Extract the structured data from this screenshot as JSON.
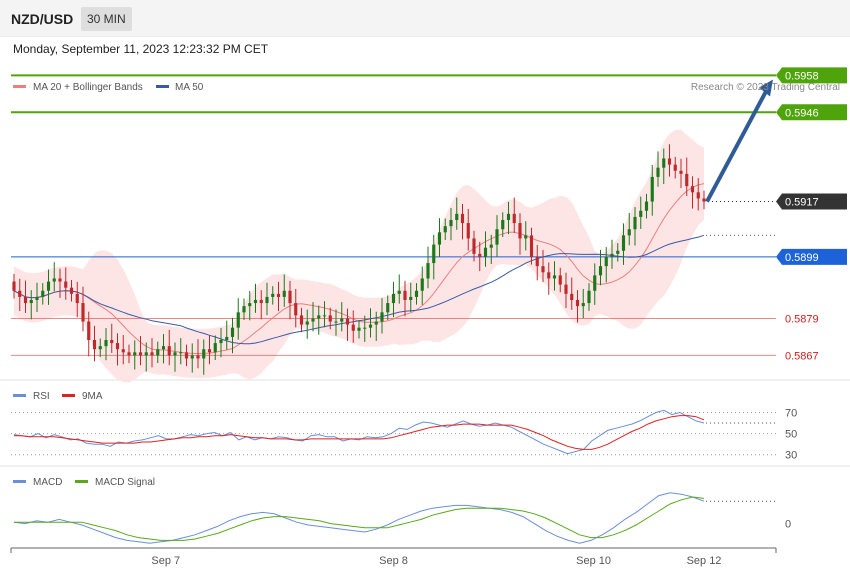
{
  "header": {
    "pair": "NZD/USD",
    "timeframe": "30 MIN",
    "datetime": "Monday, September 11, 2023 12:23:32 PM CET"
  },
  "copyright": "Research © 2023 Trading Central",
  "colors": {
    "candle_up": "#1a7a1a",
    "candle_down": "#c0292b",
    "ma20": "#f07e7e",
    "bollinger_fill": "#fde0e0",
    "ma50": "#3a5aa8",
    "resistance": "#4fa40c",
    "support": "#e05858",
    "pivot": "#1d62d8",
    "last_price": "#333333",
    "rsi": "#6a8fd8",
    "rsi_ma": "#dd2222",
    "macd": "#6a8fd8",
    "macd_signal": "#59a81a",
    "arrow": "#2f5b96"
  },
  "chart_data": [
    {
      "type": "candlestick",
      "title": "NZD/USD",
      "legend": [
        {
          "name": "MA 20 + Bollinger Bands",
          "color": "#f07e7e"
        },
        {
          "name": "MA 50",
          "color": "#3a5aa8"
        }
      ],
      "legend_position": "top-left",
      "ylim": [
        0.5859,
        0.5963
      ],
      "x_ticks": [
        "Sep 7",
        "Sep 8",
        "Sep 10",
        "Sep 12"
      ],
      "levels": [
        {
          "value": 0.5958,
          "label": "0.5958",
          "kind": "resistance"
        },
        {
          "value": 0.5946,
          "label": "0.5946",
          "kind": "resistance"
        },
        {
          "value": 0.5917,
          "label": "0.5917",
          "kind": "last"
        },
        {
          "value": 0.5899,
          "label": "0.5899",
          "kind": "pivot"
        },
        {
          "value": 0.5879,
          "label": "0.5879",
          "kind": "support"
        },
        {
          "value": 0.5867,
          "label": "0.5867",
          "kind": "support"
        }
      ],
      "ma50_last": 0.5906,
      "close_series": [
        0.5888,
        0.5886,
        0.5884,
        0.5885,
        0.5886,
        0.5888,
        0.5891,
        0.5892,
        0.5891,
        0.5889,
        0.5887,
        0.5884,
        0.5878,
        0.5872,
        0.5869,
        0.587,
        0.5872,
        0.5871,
        0.5869,
        0.5868,
        0.5867,
        0.5868,
        0.5867,
        0.5868,
        0.5867,
        0.5869,
        0.587,
        0.5867,
        0.5868,
        0.5868,
        0.5866,
        0.5867,
        0.5866,
        0.5869,
        0.5868,
        0.5871,
        0.5872,
        0.5873,
        0.5876,
        0.5881,
        0.5883,
        0.5884,
        0.5885,
        0.5884,
        0.5886,
        0.5887,
        0.5886,
        0.5888,
        0.5884,
        0.588,
        0.5877,
        0.5878,
        0.5879,
        0.588,
        0.588,
        0.5878,
        0.5878,
        0.5879,
        0.5877,
        0.5875,
        0.5876,
        0.5876,
        0.5877,
        0.5878,
        0.5881,
        0.5884,
        0.5887,
        0.5888,
        0.5885,
        0.5886,
        0.5888,
        0.5892,
        0.5897,
        0.5903,
        0.5907,
        0.5909,
        0.5911,
        0.5913,
        0.591,
        0.5905,
        0.59,
        0.5899,
        0.5902,
        0.5903,
        0.5908,
        0.5911,
        0.5913,
        0.591,
        0.5905,
        0.5906,
        0.5899,
        0.5896,
        0.5894,
        0.5892,
        0.5893,
        0.589,
        0.5887,
        0.5885,
        0.5883,
        0.5884,
        0.5888,
        0.5893,
        0.5896,
        0.5899,
        0.59,
        0.5901,
        0.5906,
        0.5908,
        0.5912,
        0.5914,
        0.5917,
        0.5925,
        0.5928,
        0.5931,
        0.5929,
        0.5927,
        0.5926,
        0.5922,
        0.592,
        0.5918,
        0.5917
      ]
    },
    {
      "type": "line",
      "title": "RSI",
      "series": [
        {
          "name": "RSI",
          "color": "#6a8fd8",
          "values": [
            49,
            48,
            47,
            50,
            46,
            49,
            47,
            44,
            45,
            41,
            40,
            40,
            38,
            42,
            41,
            43,
            44,
            46,
            48,
            45,
            45,
            47,
            49,
            48,
            50,
            51,
            48,
            51,
            44,
            47,
            44,
            46,
            45,
            47,
            46,
            44,
            43,
            48,
            49,
            47,
            47,
            43,
            45,
            44,
            47,
            46,
            47,
            50,
            55,
            54,
            58,
            61,
            60,
            58,
            56,
            59,
            62,
            59,
            57,
            58,
            60,
            58,
            56,
            52,
            48,
            44,
            40,
            37,
            34,
            31,
            33,
            35,
            43,
            48,
            53,
            55,
            57,
            59,
            62,
            66,
            70,
            72,
            68,
            70,
            66,
            62,
            60
          ]
        },
        {
          "name": "9MA",
          "color": "#dd2222",
          "values": [
            48,
            48,
            47,
            47,
            47,
            47,
            46,
            45,
            44,
            43,
            42,
            41,
            41,
            41,
            41,
            41,
            42,
            42,
            43,
            44,
            45,
            46,
            46,
            47,
            47,
            48,
            48,
            49,
            48,
            47,
            46,
            46,
            45,
            45,
            45,
            44,
            44,
            45,
            45,
            45,
            45,
            45,
            45,
            45,
            45,
            45,
            45,
            46,
            48,
            50,
            52,
            54,
            56,
            57,
            58,
            58,
            59,
            59,
            59,
            58,
            58,
            58,
            58,
            56,
            54,
            51,
            48,
            44,
            41,
            38,
            36,
            35,
            35,
            37,
            40,
            44,
            48,
            52,
            55,
            59,
            62,
            64,
            66,
            67,
            67,
            66,
            63
          ]
        }
      ],
      "ticks": [
        "70",
        "50",
        "30"
      ],
      "ylim": [
        25,
        78
      ]
    },
    {
      "type": "line",
      "title": "MACD",
      "series": [
        {
          "name": "MACD",
          "color": "#6a8fd8",
          "values": [
            0.0001,
            0.0,
            0.0002,
            0.0001,
            0.0003,
            0.0001,
            -0.0001,
            -0.0004,
            -0.0007,
            -0.001,
            -0.0012,
            -0.0013,
            -0.0014,
            -0.0013,
            -0.0012,
            -0.001,
            -0.0008,
            -0.0005,
            -0.0002,
            0.0002,
            0.0005,
            0.0007,
            0.0008,
            0.0007,
            0.0004,
            0.0001,
            -0.0001,
            -0.0002,
            -0.0003,
            -0.0004,
            -0.0005,
            -0.0006,
            -0.0004,
            -0.0001,
            0.0003,
            0.0006,
            0.0009,
            0.0011,
            0.0012,
            0.0013,
            0.0013,
            0.0012,
            0.0011,
            0.001,
            0.0008,
            0.0005,
            0.0,
            -0.0005,
            -0.0009,
            -0.0012,
            -0.0014,
            -0.0012,
            -0.0008,
            -0.0003,
            0.0003,
            0.0008,
            0.0014,
            0.002,
            0.0022,
            0.0021,
            0.0019,
            0.0016
          ]
        },
        {
          "name": "MACD Signal",
          "color": "#59a81a",
          "values": [
            0.0001,
            0.0001,
            0.0001,
            0.0001,
            0.0001,
            0.0001,
            0.0001,
            -0.0001,
            -0.0003,
            -0.0005,
            -0.0008,
            -0.001,
            -0.0011,
            -0.0012,
            -0.0012,
            -0.0012,
            -0.0011,
            -0.0009,
            -0.0007,
            -0.0004,
            -0.0001,
            0.0002,
            0.0004,
            0.0005,
            0.0005,
            0.0004,
            0.0003,
            0.0002,
            0.0,
            -0.0001,
            -0.0002,
            -0.0003,
            -0.0003,
            -0.0003,
            -0.0001,
            0.0001,
            0.0003,
            0.0006,
            0.0008,
            0.001,
            0.0011,
            0.0011,
            0.0011,
            0.0011,
            0.001,
            0.0009,
            0.0007,
            0.0004,
            0.0,
            -0.0004,
            -0.0008,
            -0.001,
            -0.001,
            -0.0008,
            -0.0005,
            -0.0001,
            0.0004,
            0.0009,
            0.0014,
            0.0017,
            0.0019,
            0.0018
          ]
        }
      ],
      "ticks": [
        "0"
      ],
      "ylim": [
        -0.0016,
        0.0024
      ]
    }
  ]
}
